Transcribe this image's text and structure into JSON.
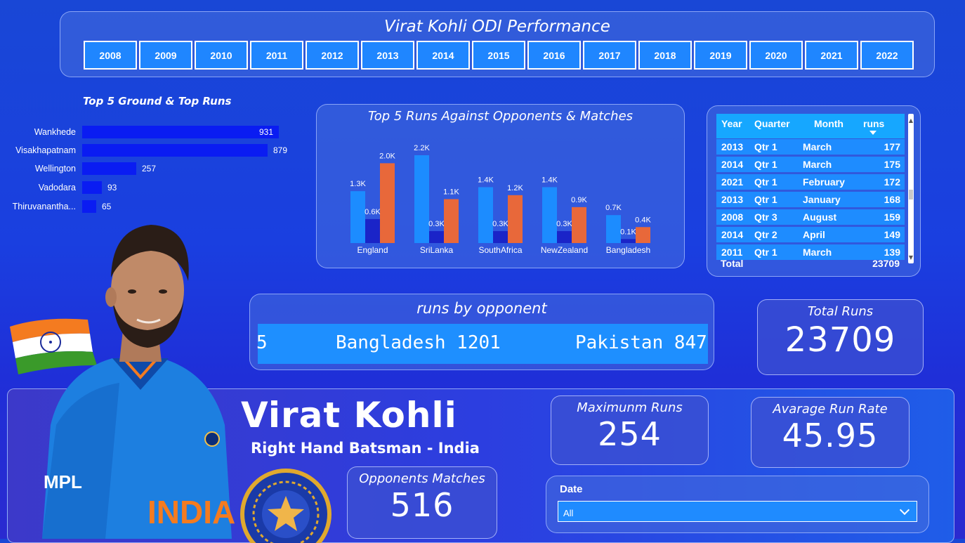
{
  "header": {
    "title": "Virat Kohli ODI Performance",
    "years": [
      "2008",
      "2009",
      "2010",
      "2011",
      "2012",
      "2013",
      "2014",
      "2015",
      "2016",
      "2017",
      "2018",
      "2019",
      "2020",
      "2021",
      "2022"
    ]
  },
  "ground": {
    "title": "Top 5 Ground & Top Runs",
    "items": [
      {
        "label": "Wankhede",
        "value": 931,
        "value_text": "931"
      },
      {
        "label": "Visakhapatnam",
        "value": 879,
        "value_text": "879"
      },
      {
        "label": "Wellington",
        "value": 257,
        "value_text": "257"
      },
      {
        "label": "Vadodara",
        "value": 93,
        "value_text": "93"
      },
      {
        "label": "Thiruvananthа...",
        "value": 65,
        "value_text": "65"
      }
    ]
  },
  "chart_data": {
    "type": "bar",
    "title": "Top 5 Runs Against Opponents & Matches",
    "categories": [
      "England",
      "SriLanka",
      "SouthAfrica",
      "NewZealand",
      "Bangladesh"
    ],
    "series": [
      {
        "values": [
          1300,
          2200,
          1400,
          1400,
          700
        ],
        "labels": [
          "1.3K",
          "2.2K",
          "1.4K",
          "1.4K",
          "0.7K"
        ],
        "color": "#1c8cff"
      },
      {
        "values": [
          600,
          300,
          300,
          300,
          100
        ],
        "labels": [
          "0.6K",
          "0.3K",
          "0.3K",
          "0.3K",
          "0.1K"
        ],
        "color": "#1a24c8"
      },
      {
        "values": [
          2000,
          1100,
          1200,
          900,
          400
        ],
        "labels": [
          "2.0K",
          "1.1K",
          "1.2K",
          "0.9K",
          "0.4K"
        ],
        "color": "#e8683a"
      }
    ],
    "ylim": [
      0,
      2200
    ]
  },
  "table": {
    "headers": {
      "year": "Year",
      "quarter": "Quarter",
      "month": "Month",
      "runs": "runs"
    },
    "rows": [
      {
        "year": "2013",
        "quarter": "Qtr 1",
        "month": "March",
        "runs": "177"
      },
      {
        "year": "2014",
        "quarter": "Qtr 1",
        "month": "March",
        "runs": "175"
      },
      {
        "year": "2021",
        "quarter": "Qtr 1",
        "month": "February",
        "runs": "172"
      },
      {
        "year": "2013",
        "quarter": "Qtr 1",
        "month": "January",
        "runs": "168"
      },
      {
        "year": "2008",
        "quarter": "Qtr 3",
        "month": "August",
        "runs": "159"
      },
      {
        "year": "2014",
        "quarter": "Qtr 2",
        "month": "April",
        "runs": "149"
      },
      {
        "year": "2011",
        "quarter": "Qtr 1",
        "month": "March",
        "runs": "139"
      }
    ],
    "total_label": "Total",
    "total_value": "23709"
  },
  "ticker": {
    "title": "runs by opponent",
    "fragment": "5",
    "item1": "Bangladesh 1201",
    "item2": "Pakistan 847"
  },
  "kpis": {
    "total_runs": {
      "title": "Total Runs",
      "value": "23709"
    },
    "max_runs": {
      "title": "Maximunm Runs",
      "value": "254"
    },
    "avg_rate": {
      "title": "Avarage Run Rate",
      "value": "45.95"
    },
    "matches": {
      "title": "Opponents Matches",
      "value": "516"
    }
  },
  "player": {
    "name": "Virat Kohli",
    "role": "Right Hand Batsman - India",
    "jersey_text": "INDIA",
    "sponsor": "MPL"
  },
  "date_slicer": {
    "label": "Date",
    "selected": "All"
  },
  "colors": {
    "year_button": "#1f86ff",
    "ground_bar": "#0a1cf2",
    "table_header": "#16a7ff",
    "table_row": "#1e8cff",
    "ticker_band": "#1e8fff"
  }
}
